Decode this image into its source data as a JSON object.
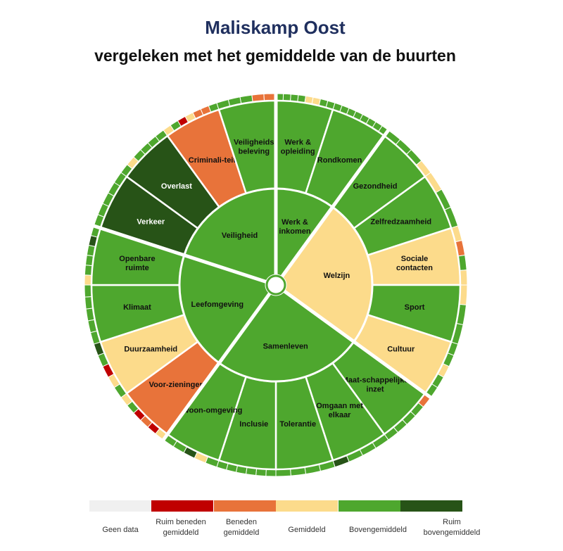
{
  "title": "Maliskamp Oost",
  "subtitle": "vergeleken met het gemiddelde van de buurten",
  "colors": {
    "geen": "#f0f0f0",
    "ruim_beneden": "#c00000",
    "beneden": "#e8733a",
    "gemiddeld": "#fcdb8b",
    "boven": "#4ea72e",
    "ruim_boven": "#275317"
  },
  "legend": [
    {
      "key": "geen",
      "label": "Geen data"
    },
    {
      "key": "ruim_beneden",
      "label": "Ruim beneden gemiddeld"
    },
    {
      "key": "beneden",
      "label": "Beneden gemiddeld"
    },
    {
      "key": "gemiddeld",
      "label": "Gemiddeld"
    },
    {
      "key": "boven",
      "label": "Bovengemiddeld"
    },
    {
      "key": "ruim_boven",
      "label": "Ruim bovengemiddeld"
    }
  ],
  "chart_data": {
    "type": "sunburst",
    "rings": [
      "thema",
      "onderwerp",
      "indicator"
    ],
    "themes": [
      {
        "name": "Werk & inkomen",
        "status": "boven",
        "span": 2,
        "subs": [
          {
            "name": "Werk & opleiding",
            "status": "boven",
            "indicators": [
              "boven",
              "boven",
              "boven",
              "boven",
              "gemiddeld",
              "gemiddeld",
              "boven",
              "boven"
            ]
          },
          {
            "name": "Rondkomen",
            "status": "boven",
            "indicators": [
              "boven",
              "boven",
              "boven",
              "boven",
              "boven",
              "boven",
              "boven",
              "boven"
            ]
          }
        ]
      },
      {
        "name": "Welzijn",
        "status": "gemiddeld",
        "span": 5,
        "subs": [
          {
            "name": "Gezondheid",
            "status": "boven",
            "indicators": [
              "boven",
              "boven",
              "boven",
              "gemiddeld"
            ]
          },
          {
            "name": "Zelfredzaamheid",
            "status": "boven",
            "indicators": [
              "gemiddeld",
              "boven",
              "boven"
            ]
          },
          {
            "name": "Sociale contacten",
            "status": "gemiddeld",
            "indicators": [
              "gemiddeld",
              "beneden",
              "boven",
              "gemiddeld"
            ]
          },
          {
            "name": "Sport",
            "status": "boven",
            "indicators": [
              "gemiddeld",
              "boven",
              "boven"
            ]
          },
          {
            "name": "Cultuur",
            "status": "gemiddeld",
            "indicators": [
              "boven",
              "boven",
              "gemiddeld",
              "boven",
              "boven"
            ]
          }
        ]
      },
      {
        "name": "Samenleven",
        "status": "boven",
        "span": 5,
        "subs": [
          {
            "name": "Maat-schappelijke inzet",
            "status": "boven",
            "indicators": [
              "beneden",
              "boven",
              "boven",
              "boven",
              "boven"
            ]
          },
          {
            "name": "Omgaan met elkaar",
            "status": "boven",
            "indicators": [
              "boven",
              "boven",
              "boven",
              "ruim_boven"
            ]
          },
          {
            "name": "Tolerantie",
            "status": "boven",
            "indicators": [
              "boven",
              "boven",
              "boven",
              "boven"
            ]
          },
          {
            "name": "Inclusie",
            "status": "boven",
            "indicators": [
              "boven",
              "boven",
              "boven",
              "boven",
              "boven",
              "boven"
            ]
          },
          {
            "name": "Woon-omgeving",
            "status": "boven",
            "indicators": [
              "boven",
              "gemiddeld",
              "ruim_boven",
              "boven",
              "boven"
            ]
          }
        ]
      },
      {
        "name": "Leefomgeving",
        "status": "boven",
        "span": 4,
        "subs": [
          {
            "name": "Voor-zieningen",
            "status": "beneden",
            "indicators": [
              "gemiddeld",
              "ruim_beneden",
              "beneden",
              "ruim_beneden",
              "boven",
              "gemiddeld"
            ]
          },
          {
            "name": "Duurzaamheid",
            "status": "gemiddeld",
            "indicators": [
              "boven",
              "gemiddeld",
              "ruim_beneden",
              "boven",
              "ruim_boven"
            ]
          },
          {
            "name": "Klimaat",
            "status": "boven",
            "indicators": [
              "boven",
              "boven",
              "boven",
              "boven",
              "boven"
            ]
          },
          {
            "name": "Openbare ruimte",
            "status": "boven",
            "indicators": [
              "gemiddeld",
              "boven",
              "boven",
              "boven",
              "ruim_boven",
              "boven"
            ]
          }
        ]
      },
      {
        "name": "Veiligheid",
        "status": "boven",
        "span": 4,
        "subs": [
          {
            "name": "Verkeer",
            "status": "ruim_boven",
            "indicators": [
              "boven",
              "boven",
              "boven",
              "boven",
              "boven"
            ]
          },
          {
            "name": "Overlast",
            "status": "ruim_boven",
            "indicators": [
              "boven",
              "gemiddeld",
              "boven",
              "boven",
              "boven",
              "boven"
            ]
          },
          {
            "name": "Criminali-teit",
            "status": "beneden",
            "indicators": [
              "gemiddeld",
              "boven",
              "ruim_beneden",
              "gemiddeld",
              "beneden",
              "beneden",
              "boven"
            ]
          },
          {
            "name": "Veiligheids beleving",
            "status": "boven",
            "indicators": [
              "boven",
              "boven",
              "boven",
              "beneden",
              "beneden"
            ]
          }
        ]
      }
    ]
  }
}
